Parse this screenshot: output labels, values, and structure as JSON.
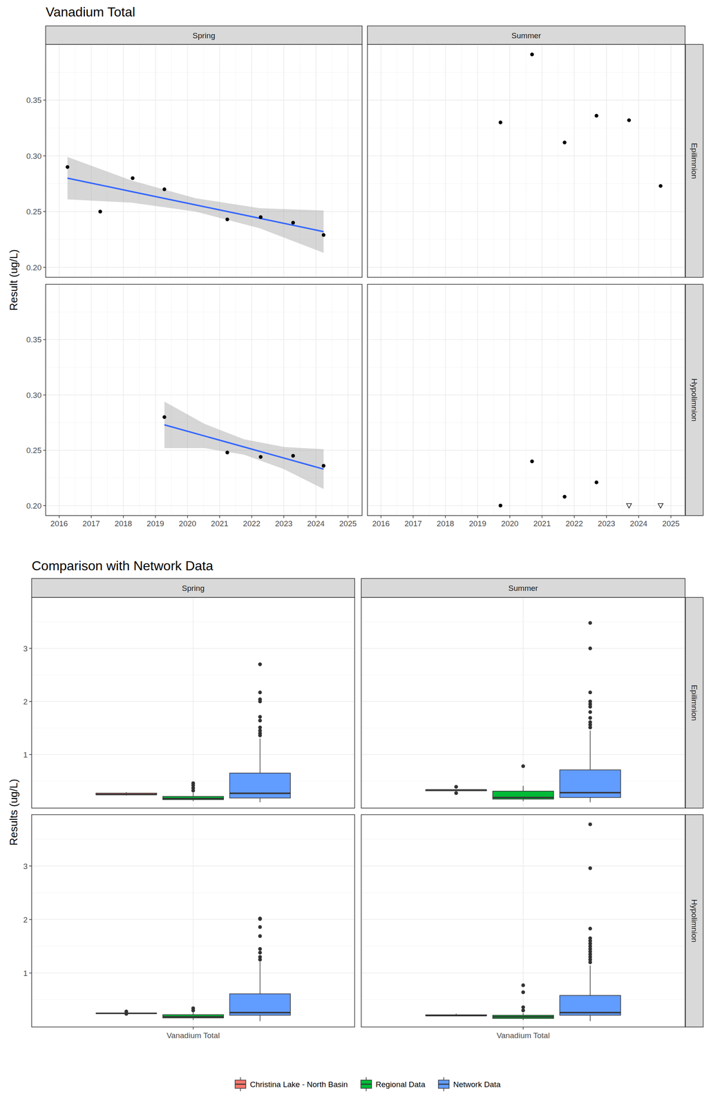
{
  "chart_data": [
    {
      "type": "scatter",
      "title": "Vanadium Total",
      "y_label": "Result (ug/L)",
      "facets": {
        "columns": [
          "Spring",
          "Summer"
        ],
        "rows": [
          "Epilimnion",
          "Hypolimnion"
        ]
      },
      "xlim": [
        2015.58,
        2025.44
      ],
      "xticks": [
        2016,
        2017,
        2018,
        2019,
        2020,
        2021,
        2022,
        2023,
        2024,
        2025
      ],
      "ylim": [
        0.191,
        0.4
      ],
      "yticks": [
        {
          "value": 0.2,
          "label": "0.20"
        },
        0.25,
        {
          "value": 0.3,
          "label": "0.30"
        },
        0.35
      ],
      "grid": true,
      "panels": [
        [
          {
            "series": [
              {
                "marker": "circle",
                "x": [
                  2016.26,
                  2017.28,
                  2018.29,
                  2019.28,
                  2021.24,
                  2022.28,
                  2023.29,
                  2024.24
                ],
                "values": [
                  0.29,
                  0.25,
                  0.28,
                  0.27,
                  0.243,
                  0.245,
                  0.24,
                  0.229
                ]
              }
            ],
            "trend": {
              "color": "#3366FF",
              "x": [
                2016.26,
                2018.25,
                2020.25,
                2022.25,
                2024.24
              ],
              "values": [
                0.28,
                0.268,
                0.256,
                0.244,
                0.232
              ],
              "lower": [
                0.261,
                0.258,
                0.25,
                0.235,
                0.213
              ],
              "upper": [
                0.299,
                0.278,
                0.262,
                0.253,
                0.251
              ]
            }
          },
          {
            "series": [
              {
                "marker": "circle",
                "x": [
                  2019.71,
                  2020.69,
                  2021.7,
                  2022.69,
                  2023.7,
                  2024.68
                ],
                "values": [
                  0.33,
                  0.391,
                  0.312,
                  0.336,
                  0.332,
                  0.273
                ]
              }
            ]
          }
        ],
        [
          {
            "series": [
              {
                "marker": "circle",
                "x": [
                  2019.28,
                  2021.24,
                  2022.28,
                  2023.29,
                  2024.24
                ],
                "values": [
                  0.28,
                  0.248,
                  0.244,
                  0.245,
                  0.236
                ]
              }
            ],
            "trend": {
              "color": "#3366FF",
              "x": [
                2019.28,
                2020.52,
                2021.76,
                2023.0,
                2024.24
              ],
              "values": [
                0.273,
                0.263,
                0.253,
                0.243,
                0.233
              ],
              "lower": [
                0.252,
                0.252,
                0.246,
                0.233,
                0.215
              ],
              "upper": [
                0.294,
                0.274,
                0.26,
                0.253,
                0.251
              ]
            }
          },
          {
            "series": [
              {
                "marker": "circle",
                "x": [
                  2019.71,
                  2020.69,
                  2021.7,
                  2022.69
                ],
                "values": [
                  0.2,
                  0.24,
                  0.208,
                  0.221
                ]
              },
              {
                "marker": "triangle-down",
                "x": [
                  2023.7,
                  2024.68
                ],
                "values": [
                  0.2,
                  0.2
                ]
              }
            ]
          }
        ]
      ]
    },
    {
      "type": "box",
      "title": "Comparison with Network Data",
      "y_label": "Results (ug/L)",
      "categories": [
        "Vanadium Total"
      ],
      "facets": {
        "columns": [
          "Spring",
          "Summer"
        ],
        "rows": [
          "Epilimnion",
          "Hypolimnion"
        ]
      },
      "ylim": [
        -0.01,
        3.96
      ],
      "yticks": [
        1,
        2,
        3
      ],
      "grid": true,
      "legend": "bottom",
      "series": [
        {
          "name": "Christina Lake - North Basin",
          "color": "#F8766D"
        },
        {
          "name": "Regional Data",
          "color": "#00BA38"
        },
        {
          "name": "Network Data",
          "color": "#619CFF"
        }
      ],
      "panels": [
        [
          {
            "boxes": [
              {
                "low": 0.229,
                "q1": 0.242,
                "median": 0.2475,
                "q3": 0.2725,
                "high": 0.29,
                "outliers": []
              },
              {
                "low": 0.12,
                "q1": 0.15,
                "median": 0.17,
                "q3": 0.21,
                "high": 0.28,
                "outliers": [
                  0.32,
                  0.37,
                  0.42,
                  0.46
                ]
              },
              {
                "low": 0.1,
                "q1": 0.18,
                "median": 0.27,
                "q3": 0.65,
                "high": 1.3,
                "outliers": [
                  1.36,
                  1.4,
                  1.45,
                  1.51,
                  1.64,
                  1.71,
                  2.0,
                  2.04,
                  2.17,
                  2.7
                ]
              }
            ]
          },
          {
            "boxes": [
              {
                "low": 0.312,
                "q1": 0.3165,
                "median": 0.331,
                "q3": 0.335,
                "high": 0.336,
                "outliers": [
                  0.273,
                  0.391
                ]
              },
              {
                "low": 0.12,
                "q1": 0.16,
                "median": 0.19,
                "q3": 0.31,
                "high": 0.41,
                "outliers": [
                  0.78
                ]
              },
              {
                "low": 0.1,
                "q1": 0.19,
                "median": 0.28,
                "q3": 0.71,
                "high": 1.45,
                "outliers": [
                  1.51,
                  1.56,
                  1.61,
                  1.69,
                  1.8,
                  1.9,
                  1.95,
                  2.0,
                  2.17,
                  3.0,
                  3.48
                ]
              }
            ]
          }
        ],
        [
          {
            "boxes": [
              {
                "low": 0.244,
                "q1": 0.244,
                "median": 0.245,
                "q3": 0.248,
                "high": 0.248,
                "outliers": [
                  0.236,
                  0.28
                ]
              },
              {
                "low": 0.12,
                "q1": 0.16,
                "median": 0.18,
                "q3": 0.22,
                "high": 0.27,
                "outliers": [
                  0.3,
                  0.34
                ]
              },
              {
                "low": 0.1,
                "q1": 0.21,
                "median": 0.26,
                "q3": 0.61,
                "high": 1.21,
                "outliers": [
                  1.25,
                  1.3,
                  1.38,
                  1.45,
                  1.69,
                  1.86,
                  2.01,
                  2.02
                ]
              }
            ]
          },
          {
            "boxes": [
              {
                "low": 0.2,
                "q1": 0.2,
                "median": 0.204,
                "q3": 0.2178,
                "high": 0.24,
                "outliers": []
              },
              {
                "low": 0.12,
                "q1": 0.15,
                "median": 0.18,
                "q3": 0.21,
                "high": 0.25,
                "outliers": [
                  0.3,
                  0.36,
                  0.64,
                  0.77
                ]
              },
              {
                "low": 0.1,
                "q1": 0.21,
                "median": 0.26,
                "q3": 0.58,
                "high": 1.14,
                "outliers": [
                  1.2,
                  1.25,
                  1.3,
                  1.35,
                  1.4,
                  1.45,
                  1.5,
                  1.55,
                  1.6,
                  1.65,
                  1.83,
                  2.96,
                  3.78
                ]
              }
            ]
          }
        ]
      ]
    }
  ]
}
